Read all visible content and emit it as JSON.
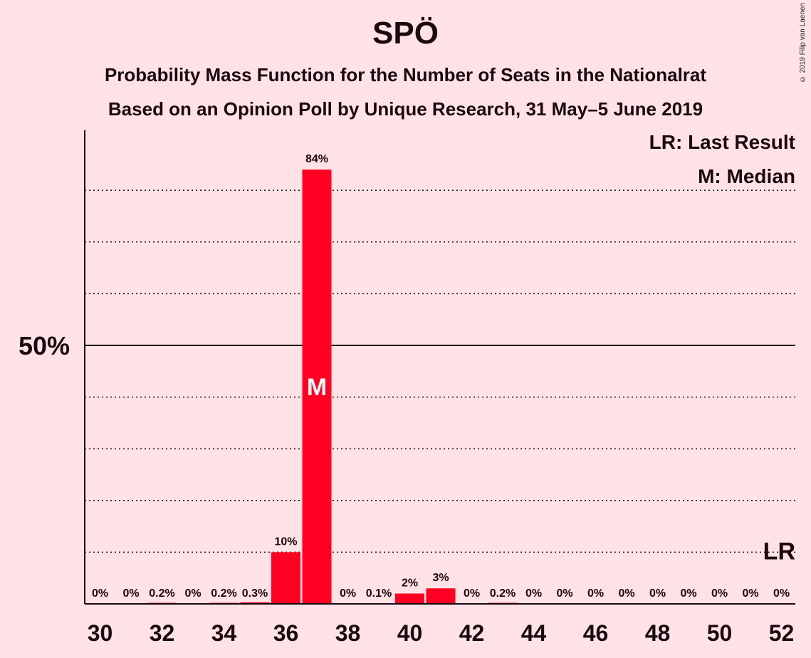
{
  "title": "SPÖ",
  "subtitle1": "Probability Mass Function for the Number of Seats in the Nationalrat",
  "subtitle2": "Based on an Opinion Poll by Unique Research, 31 May–5 June 2019",
  "copyright": "© 2019 Filip van Laenen",
  "legend": {
    "last_result": "LR: Last Result",
    "median": "M: Median"
  },
  "markers": {
    "median_label": "M",
    "last_result_label": "LR"
  },
  "colors": {
    "bar": "#ff0022",
    "background": "#ffe2e6"
  },
  "chart_data": {
    "type": "bar",
    "x": [
      30,
      31,
      32,
      33,
      34,
      35,
      36,
      37,
      38,
      39,
      40,
      41,
      42,
      43,
      44,
      45,
      46,
      47,
      48,
      49,
      50,
      51,
      52
    ],
    "values": [
      0,
      0,
      0.2,
      0,
      0.2,
      0.3,
      10,
      84,
      0,
      0.1,
      2,
      3,
      0,
      0.2,
      0,
      0,
      0,
      0,
      0,
      0,
      0,
      0,
      0
    ],
    "value_labels": [
      "0%",
      "0%",
      "0.2%",
      "0%",
      "0.2%",
      "0.3%",
      "10%",
      "84%",
      "0%",
      "0.1%",
      "2%",
      "3%",
      "0%",
      "0.2%",
      "0%",
      "0%",
      "0%",
      "0%",
      "0%",
      "0%",
      "0%",
      "0%",
      "0%"
    ],
    "x_tick_labels": [
      "30",
      "32",
      "34",
      "36",
      "38",
      "40",
      "42",
      "44",
      "46",
      "48",
      "50",
      "52"
    ],
    "y_tick_labels": [
      "50%"
    ],
    "ylim": [
      0,
      92
    ],
    "gridlines": [
      10,
      20,
      30,
      40,
      60,
      70,
      80
    ],
    "median_seat": 37,
    "last_result_seat": 52,
    "last_result_value": 10
  }
}
